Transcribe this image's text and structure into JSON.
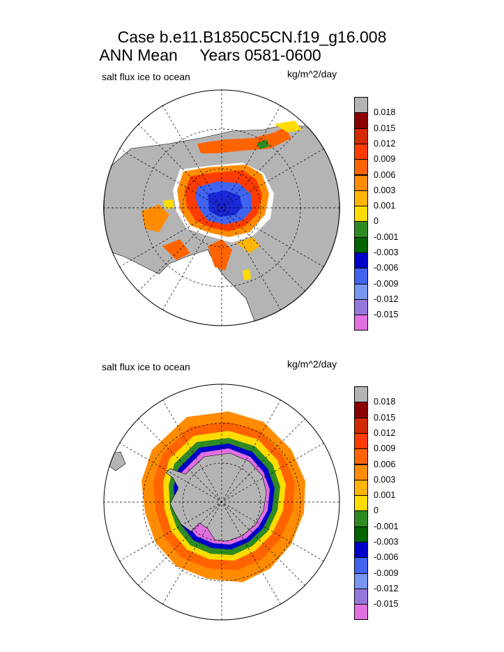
{
  "header": {
    "line1": "Case b.e11.B1850C5CN.f19_g16.008",
    "line2": "ANN Mean     Years 0581-0600"
  },
  "panels": [
    {
      "variable": "salt flux ice to ocean",
      "units": "kg/m^2/day",
      "hemisphere": "north"
    },
    {
      "variable": "salt flux ice to ocean",
      "units": "kg/m^2/day",
      "hemisphere": "south"
    }
  ],
  "colorbar": {
    "labels": [
      "0.018",
      "0.015",
      "0.012",
      "0.009",
      "0.006",
      "0.003",
      "0.001",
      "0",
      "-0.001",
      "-0.003",
      "-0.006",
      "-0.009",
      "-0.012",
      "-0.015"
    ],
    "colors": [
      "#b4b4b4",
      "#8b0000",
      "#d42a00",
      "#ff3c00",
      "#ff6400",
      "#ff8c00",
      "#ffb400",
      "#ffdc00",
      "#2e8b22",
      "#006400",
      "#0000c8",
      "#4164f0",
      "#7896f0",
      "#9678dc",
      "#e070e0"
    ]
  }
}
